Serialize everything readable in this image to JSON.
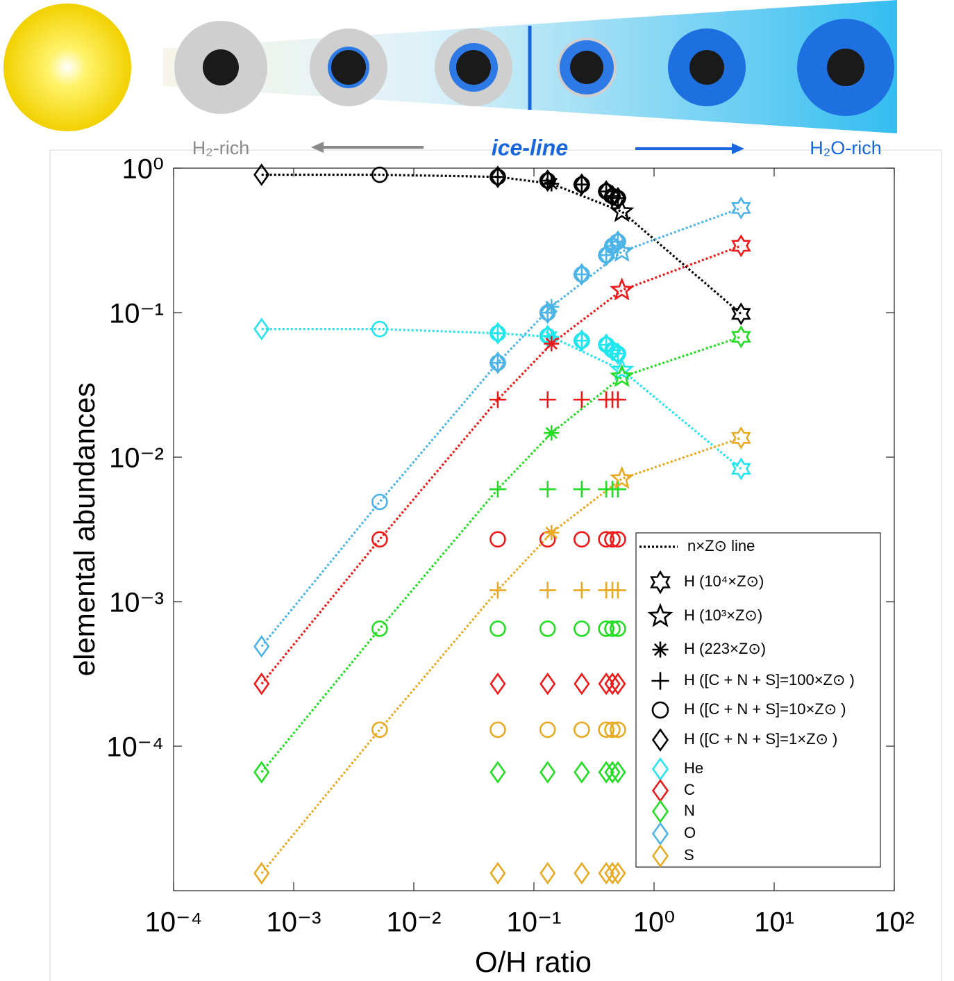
{
  "header": {
    "left": "H₂-rich",
    "center": "ice-line",
    "right": "H₂O-rich"
  },
  "chart_data": {
    "type": "scatter",
    "x_label": "O/H ratio",
    "y_label": "elemental abundances",
    "xscale": "log",
    "yscale": "log",
    "xlim": [
      0.0001,
      100
    ],
    "ylim": [
      1e-05,
      1
    ],
    "xticks": [
      {
        "value": 0.0001,
        "label": "10⁻⁴"
      },
      {
        "value": 0.001,
        "label": "10⁻³"
      },
      {
        "value": 0.01,
        "label": "10⁻²"
      },
      {
        "value": 0.1,
        "label": "10⁻¹"
      },
      {
        "value": 1,
        "label": "10⁰"
      },
      {
        "value": 10,
        "label": "10¹"
      },
      {
        "value": 100,
        "label": "10²"
      }
    ],
    "yticks": [
      {
        "value": 0.0001,
        "label": "10⁻⁴"
      },
      {
        "value": 0.001,
        "label": "10⁻³"
      },
      {
        "value": 0.01,
        "label": "10⁻²"
      },
      {
        "value": 0.1,
        "label": "10⁻¹"
      },
      {
        "value": 1,
        "label": "10⁰"
      }
    ],
    "legend_position": "lower right",
    "legend": [
      {
        "label": "n×Z⊙ line",
        "marker": "line",
        "color": "#000000"
      },
      {
        "label": "H (10⁴×Z⊙)",
        "marker": "star6",
        "color": "#000000"
      },
      {
        "label": "H (10³×Z⊙)",
        "marker": "star5",
        "color": "#000000"
      },
      {
        "label": "H (223×Z⊙)",
        "marker": "asterisk",
        "color": "#000000"
      },
      {
        "label": "H ([C + N + S]=100×Z⊙ )",
        "marker": "plus",
        "color": "#000000"
      },
      {
        "label": "H ([C + N + S]=10×Z⊙ )",
        "marker": "circle",
        "color": "#000000"
      },
      {
        "label": "H ([C + N + S]=1×Z⊙ )",
        "marker": "diamond",
        "color": "#000000"
      },
      {
        "label": "He",
        "marker": "diamond",
        "color": "#22e6ee"
      },
      {
        "label": "C",
        "marker": "diamond",
        "color": "#ee1a1a"
      },
      {
        "label": "N",
        "marker": "diamond",
        "color": "#22dd22"
      },
      {
        "label": "O",
        "marker": "diamond",
        "color": "#4cb4e6"
      },
      {
        "label": "S",
        "marker": "diamond",
        "color": "#e8aa22"
      }
    ],
    "lines": [
      {
        "color": "#000000",
        "x": [
          0.00054,
          0.0052,
          0.05,
          0.14,
          0.54,
          5.3
        ],
        "values": [
          0.9,
          0.9,
          0.87,
          0.78,
          0.5,
          0.098
        ]
      },
      {
        "color": "#22e6ee",
        "x": [
          0.00054,
          0.0052,
          0.05,
          0.14,
          0.54,
          5.3
        ],
        "values": [
          0.077,
          0.077,
          0.072,
          0.068,
          0.04,
          0.0083
        ]
      },
      {
        "color": "#ee1a1a",
        "x": [
          0.00054,
          0.0052,
          0.05,
          0.14,
          0.54,
          5.3
        ],
        "values": [
          0.00027,
          0.0027,
          0.025,
          0.061,
          0.143,
          0.29
        ]
      },
      {
        "color": "#22dd22",
        "x": [
          0.00054,
          0.0052,
          0.05,
          0.14,
          0.54,
          5.3
        ],
        "values": [
          6.6e-05,
          0.00065,
          0.006,
          0.0147,
          0.036,
          0.068
        ]
      },
      {
        "color": "#4cb4e6",
        "x": [
          0.00054,
          0.0052,
          0.05,
          0.14,
          0.54,
          5.3
        ],
        "values": [
          0.00049,
          0.0049,
          0.045,
          0.11,
          0.265,
          0.53
        ]
      },
      {
        "color": "#e8aa22",
        "x": [
          0.00054,
          0.0052,
          0.05,
          0.14,
          0.54,
          5.3
        ],
        "values": [
          1.32e-05,
          0.00013,
          0.0012,
          0.003,
          0.0071,
          0.0136
        ]
      }
    ],
    "series": [
      {
        "marker": "diamond",
        "color": "#000000",
        "x": [
          0.00054,
          0.05,
          0.13,
          0.25,
          0.4,
          0.45,
          0.5
        ],
        "values": [
          0.9,
          0.87,
          0.82,
          0.77,
          0.69,
          0.64,
          0.62
        ]
      },
      {
        "marker": "circle",
        "color": "#000000",
        "x": [
          0.0052,
          0.05,
          0.13,
          0.25,
          0.4,
          0.45,
          0.5
        ],
        "values": [
          0.9,
          0.87,
          0.82,
          0.77,
          0.69,
          0.64,
          0.62
        ]
      },
      {
        "marker": "plus",
        "color": "#000000",
        "x": [
          0.05,
          0.13,
          0.25,
          0.4,
          0.45,
          0.5
        ],
        "values": [
          0.87,
          0.82,
          0.77,
          0.69,
          0.64,
          0.62
        ]
      },
      {
        "marker": "asterisk",
        "color": "#000000",
        "x": [
          0.14
        ],
        "values": [
          0.78
        ]
      },
      {
        "marker": "star5",
        "color": "#000000",
        "x": [
          0.54
        ],
        "values": [
          0.5
        ]
      },
      {
        "marker": "star6",
        "color": "#000000",
        "x": [
          5.3
        ],
        "values": [
          0.098
        ]
      },
      {
        "marker": "diamond",
        "color": "#22e6ee",
        "x": [
          0.00054,
          0.05,
          0.13,
          0.25,
          0.4,
          0.45,
          0.5
        ],
        "values": [
          0.077,
          0.072,
          0.069,
          0.064,
          0.06,
          0.055,
          0.052
        ]
      },
      {
        "marker": "circle",
        "color": "#22e6ee",
        "x": [
          0.0052,
          0.05,
          0.13,
          0.25,
          0.4,
          0.45,
          0.5
        ],
        "values": [
          0.077,
          0.072,
          0.069,
          0.064,
          0.06,
          0.055,
          0.052
        ]
      },
      {
        "marker": "plus",
        "color": "#22e6ee",
        "x": [
          0.05,
          0.13,
          0.25,
          0.4,
          0.45,
          0.5
        ],
        "values": [
          0.072,
          0.069,
          0.064,
          0.06,
          0.055,
          0.052
        ]
      },
      {
        "marker": "asterisk",
        "color": "#22e6ee",
        "x": [
          0.14
        ],
        "values": [
          0.068
        ]
      },
      {
        "marker": "star5",
        "color": "#22e6ee",
        "x": [
          0.54
        ],
        "values": [
          0.04
        ]
      },
      {
        "marker": "star6",
        "color": "#22e6ee",
        "x": [
          5.3
        ],
        "values": [
          0.0083
        ]
      },
      {
        "marker": "diamond",
        "color": "#ee1a1a",
        "x": [
          0.00054,
          0.05,
          0.13,
          0.25,
          0.4,
          0.45,
          0.5
        ],
        "values": [
          0.00027,
          0.00027,
          0.00027,
          0.00027,
          0.00027,
          0.00027,
          0.00027
        ]
      },
      {
        "marker": "circle",
        "color": "#ee1a1a",
        "x": [
          0.0052,
          0.05,
          0.13,
          0.25,
          0.4,
          0.45,
          0.5
        ],
        "values": [
          0.0027,
          0.0027,
          0.0027,
          0.0027,
          0.0027,
          0.0027,
          0.0027
        ]
      },
      {
        "marker": "plus",
        "color": "#ee1a1a",
        "x": [
          0.05,
          0.13,
          0.25,
          0.4,
          0.45,
          0.5
        ],
        "values": [
          0.025,
          0.025,
          0.025,
          0.025,
          0.025,
          0.025
        ]
      },
      {
        "marker": "asterisk",
        "color": "#ee1a1a",
        "x": [
          0.14
        ],
        "values": [
          0.061
        ]
      },
      {
        "marker": "star5",
        "color": "#ee1a1a",
        "x": [
          0.54
        ],
        "values": [
          0.143
        ]
      },
      {
        "marker": "star6",
        "color": "#ee1a1a",
        "x": [
          5.3
        ],
        "values": [
          0.29
        ]
      },
      {
        "marker": "diamond",
        "color": "#22dd22",
        "x": [
          0.00054,
          0.05,
          0.13,
          0.25,
          0.4,
          0.45,
          0.5
        ],
        "values": [
          6.6e-05,
          6.6e-05,
          6.6e-05,
          6.6e-05,
          6.6e-05,
          6.6e-05,
          6.6e-05
        ]
      },
      {
        "marker": "circle",
        "color": "#22dd22",
        "x": [
          0.0052,
          0.05,
          0.13,
          0.25,
          0.4,
          0.45,
          0.5
        ],
        "values": [
          0.00065,
          0.00065,
          0.00065,
          0.00065,
          0.00065,
          0.00065,
          0.00065
        ]
      },
      {
        "marker": "plus",
        "color": "#22dd22",
        "x": [
          0.05,
          0.13,
          0.25,
          0.4,
          0.45,
          0.5
        ],
        "values": [
          0.006,
          0.006,
          0.006,
          0.006,
          0.006,
          0.006
        ]
      },
      {
        "marker": "asterisk",
        "color": "#22dd22",
        "x": [
          0.14
        ],
        "values": [
          0.0147
        ]
      },
      {
        "marker": "star5",
        "color": "#22dd22",
        "x": [
          0.54
        ],
        "values": [
          0.036
        ]
      },
      {
        "marker": "star6",
        "color": "#22dd22",
        "x": [
          5.3
        ],
        "values": [
          0.068
        ]
      },
      {
        "marker": "diamond",
        "color": "#4cb4e6",
        "x": [
          0.00054,
          0.05,
          0.13,
          0.25,
          0.4,
          0.45,
          0.5
        ],
        "values": [
          0.00049,
          0.045,
          0.1,
          0.184,
          0.25,
          0.29,
          0.31
        ]
      },
      {
        "marker": "circle",
        "color": "#4cb4e6",
        "x": [
          0.0052,
          0.05,
          0.13,
          0.25,
          0.4,
          0.45,
          0.5
        ],
        "values": [
          0.0049,
          0.045,
          0.1,
          0.184,
          0.25,
          0.29,
          0.31
        ]
      },
      {
        "marker": "plus",
        "color": "#4cb4e6",
        "x": [
          0.05,
          0.13,
          0.25,
          0.4,
          0.45,
          0.5
        ],
        "values": [
          0.045,
          0.1,
          0.184,
          0.25,
          0.29,
          0.31
        ]
      },
      {
        "marker": "asterisk",
        "color": "#4cb4e6",
        "x": [
          0.14
        ],
        "values": [
          0.11
        ]
      },
      {
        "marker": "star5",
        "color": "#4cb4e6",
        "x": [
          0.54
        ],
        "values": [
          0.265
        ]
      },
      {
        "marker": "star6",
        "color": "#4cb4e6",
        "x": [
          5.3
        ],
        "values": [
          0.53
        ]
      },
      {
        "marker": "diamond",
        "color": "#e8aa22",
        "x": [
          0.00054,
          0.05,
          0.13,
          0.25,
          0.4,
          0.45,
          0.5
        ],
        "values": [
          1.32e-05,
          1.32e-05,
          1.32e-05,
          1.32e-05,
          1.32e-05,
          1.32e-05,
          1.32e-05
        ]
      },
      {
        "marker": "circle",
        "color": "#e8aa22",
        "x": [
          0.0052,
          0.05,
          0.13,
          0.25,
          0.4,
          0.45,
          0.5
        ],
        "values": [
          0.00013,
          0.00013,
          0.00013,
          0.00013,
          0.00013,
          0.00013,
          0.00013
        ]
      },
      {
        "marker": "plus",
        "color": "#e8aa22",
        "x": [
          0.05,
          0.13,
          0.25,
          0.4,
          0.45,
          0.5
        ],
        "values": [
          0.0012,
          0.0012,
          0.0012,
          0.0012,
          0.0012,
          0.0012
        ]
      },
      {
        "marker": "asterisk",
        "color": "#e8aa22",
        "x": [
          0.14
        ],
        "values": [
          0.003
        ]
      },
      {
        "marker": "star5",
        "color": "#e8aa22",
        "x": [
          0.54
        ],
        "values": [
          0.0071
        ]
      },
      {
        "marker": "star6",
        "color": "#e8aa22",
        "x": [
          5.3
        ],
        "values": [
          0.0136
        ]
      }
    ]
  }
}
